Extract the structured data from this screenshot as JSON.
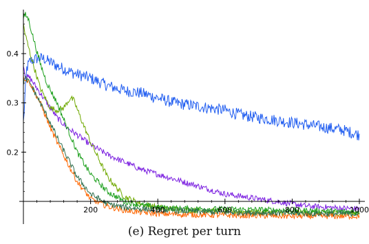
{
  "chart_data": {
    "type": "line",
    "title": "",
    "xlabel": "",
    "ylabel": "",
    "xlim": [
      0,
      1000
    ],
    "ylim": [
      0.1,
      0.48
    ],
    "x_axis_at_y": 0.1,
    "x_ticks": [
      200,
      400,
      600,
      800,
      1000
    ],
    "x_tick_labels": [
      "200",
      "400",
      "600",
      "800",
      "1000"
    ],
    "y_ticks": [
      0.2,
      0.3,
      0.4
    ],
    "y_tick_labels": [
      "0.2",
      "0.3",
      "0.4"
    ],
    "grid": false,
    "series": [
      {
        "color": "#1f5cf0",
        "x": [
          0,
          10,
          20,
          40,
          60,
          100,
          150,
          200,
          250,
          300,
          350,
          400,
          450,
          500,
          550,
          600,
          650,
          700,
          750,
          800,
          850,
          900,
          950,
          1000
        ],
        "y": [
          0.26,
          0.37,
          0.385,
          0.39,
          0.39,
          0.375,
          0.36,
          0.35,
          0.335,
          0.325,
          0.32,
          0.31,
          0.3,
          0.295,
          0.29,
          0.285,
          0.275,
          0.27,
          0.265,
          0.26,
          0.255,
          0.25,
          0.245,
          0.235
        ]
      },
      {
        "color": "#7b1fe0",
        "x": [
          0,
          5,
          20,
          50,
          80,
          100,
          130,
          150,
          200,
          250,
          300,
          350,
          400,
          450,
          500,
          550,
          600,
          650,
          700,
          750,
          800,
          850,
          900,
          950,
          1000
        ],
        "y": [
          0.38,
          0.355,
          0.35,
          0.32,
          0.29,
          0.27,
          0.25,
          0.24,
          0.215,
          0.195,
          0.18,
          0.165,
          0.155,
          0.145,
          0.135,
          0.125,
          0.115,
          0.11,
          0.105,
          0.1,
          0.095,
          0.09,
          0.088,
          0.086,
          0.085
        ]
      },
      {
        "color": "#6fa800",
        "x": [
          0,
          5,
          20,
          50,
          80,
          100,
          120,
          140,
          150,
          170,
          200,
          250,
          300,
          350,
          400,
          450,
          500,
          600,
          700,
          800,
          900,
          1000
        ],
        "y": [
          0.46,
          0.44,
          0.4,
          0.33,
          0.29,
          0.285,
          0.29,
          0.31,
          0.305,
          0.27,
          0.22,
          0.15,
          0.11,
          0.095,
          0.088,
          0.084,
          0.082,
          0.08,
          0.078,
          0.077,
          0.077,
          0.076
        ]
      },
      {
        "color": "#1a9e1a",
        "x": [
          0,
          5,
          15,
          30,
          50,
          70,
          100,
          130,
          160,
          200,
          250,
          300,
          350,
          400,
          450,
          500,
          600,
          700,
          800,
          900,
          1000
        ],
        "y": [
          0.47,
          0.48,
          0.47,
          0.43,
          0.38,
          0.34,
          0.3,
          0.25,
          0.2,
          0.155,
          0.12,
          0.1,
          0.092,
          0.088,
          0.086,
          0.085,
          0.084,
          0.083,
          0.082,
          0.08,
          0.079
        ]
      },
      {
        "color": "#ff6600",
        "x": [
          0,
          5,
          20,
          50,
          80,
          100,
          130,
          160,
          200,
          250,
          300,
          350,
          400,
          500,
          600,
          700,
          800,
          900,
          1000
        ],
        "y": [
          0.35,
          0.35,
          0.34,
          0.3,
          0.25,
          0.22,
          0.18,
          0.14,
          0.105,
          0.09,
          0.082,
          0.078,
          0.075,
          0.073,
          0.072,
          0.071,
          0.07,
          0.07,
          0.07
        ]
      },
      {
        "color": "#2f6f4f",
        "x": [
          0,
          5,
          20,
          50,
          80,
          100,
          130,
          160,
          200,
          250,
          300,
          350,
          400,
          500,
          600,
          700,
          800,
          900,
          1000
        ],
        "y": [
          0.34,
          0.35,
          0.34,
          0.3,
          0.26,
          0.23,
          0.19,
          0.15,
          0.115,
          0.095,
          0.088,
          0.085,
          0.083,
          0.08,
          0.078,
          0.077,
          0.076,
          0.075,
          0.075
        ]
      }
    ]
  },
  "caption": "(e)  Regret per turn"
}
